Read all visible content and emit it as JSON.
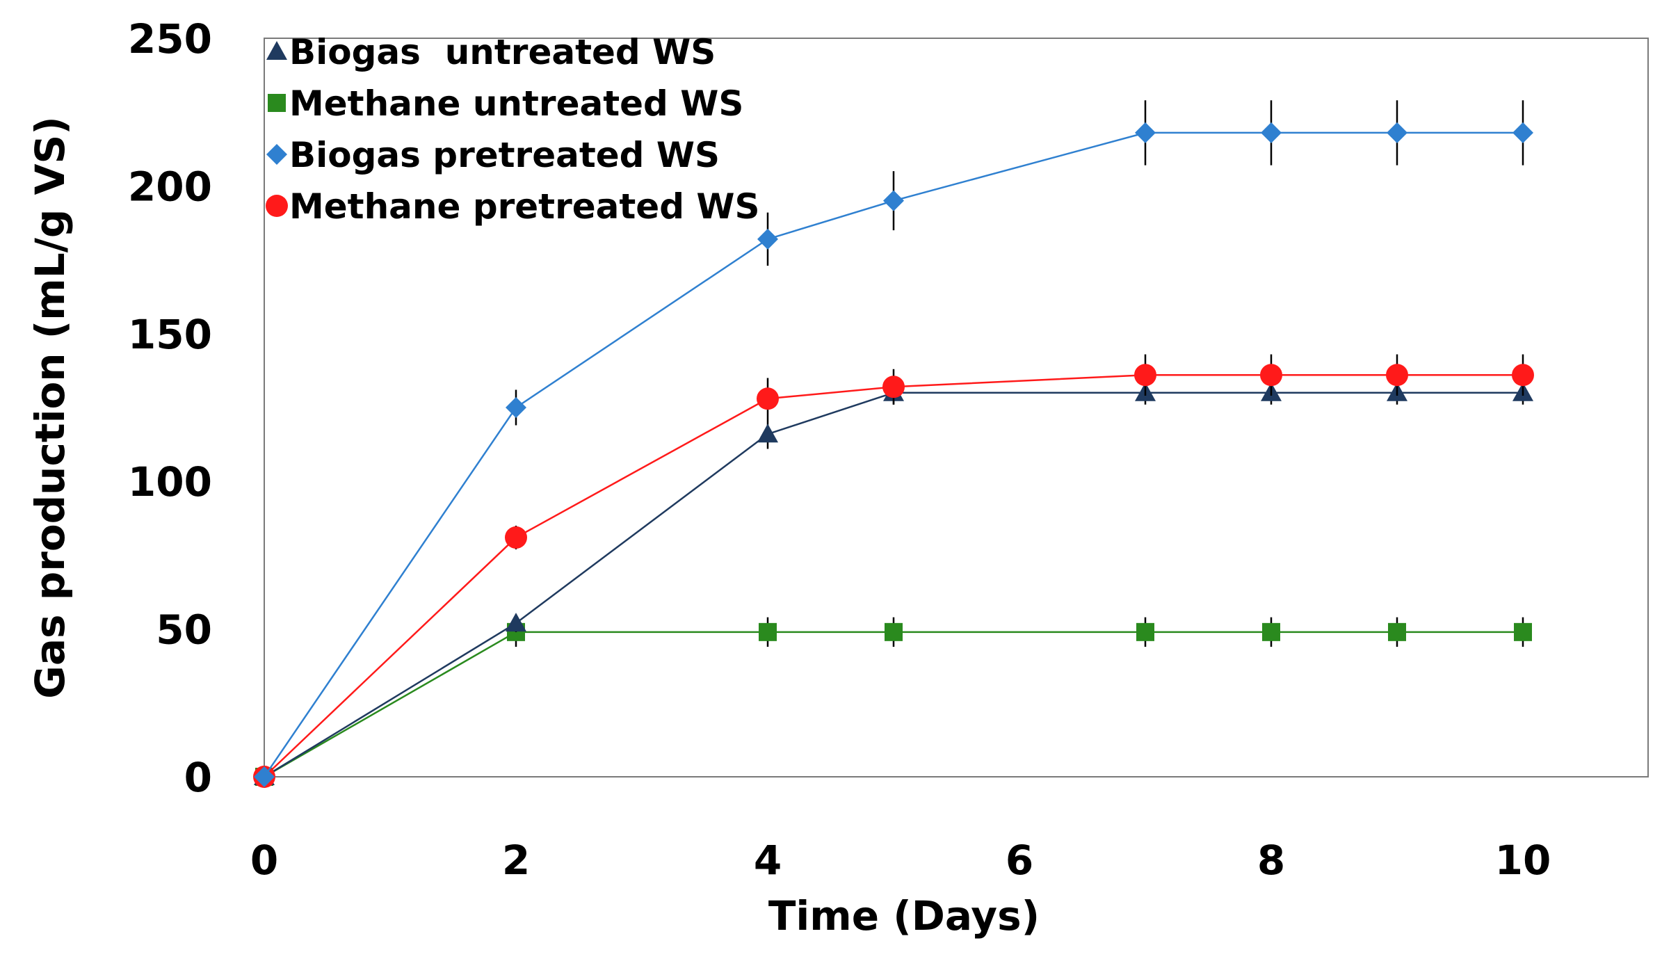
{
  "chart_data": {
    "type": "line",
    "title": "",
    "xlabel": "Time (Days)",
    "ylabel": "Gas production (mL/g VS)",
    "xlim": [
      0,
      11
    ],
    "ylim": [
      0,
      250
    ],
    "xticks": [
      0,
      2,
      4,
      6,
      8,
      10
    ],
    "yticks": [
      0,
      50,
      100,
      150,
      200,
      250
    ],
    "grid": false,
    "legend_position": "top-left",
    "x": [
      0,
      2,
      4,
      5,
      7,
      8,
      9,
      10
    ],
    "series": [
      {
        "name": "Biogas  untreated WS",
        "marker": "triangle",
        "color": "#1f3a5f",
        "values": [
          0,
          52,
          116,
          130,
          130,
          130,
          130,
          130
        ],
        "errors": [
          0,
          3,
          5,
          4,
          4,
          4,
          4,
          4
        ]
      },
      {
        "name": "Methane untreated WS",
        "marker": "square",
        "color": "#2a8a1e",
        "values": [
          0,
          49,
          49,
          49,
          49,
          49,
          49,
          49
        ],
        "errors": [
          0,
          5,
          5,
          5,
          5,
          5,
          5,
          5
        ]
      },
      {
        "name": "Biogas pretreated WS",
        "marker": "diamond",
        "color": "#2f80d0",
        "values": [
          0,
          125,
          182,
          195,
          218,
          218,
          218,
          218
        ],
        "errors": [
          0,
          6,
          9,
          10,
          11,
          11,
          11,
          11
        ]
      },
      {
        "name": "Methane pretreated WS",
        "marker": "circle",
        "color": "#ff1a1a",
        "values": [
          0,
          81,
          128,
          132,
          136,
          136,
          136,
          136
        ],
        "errors": [
          0,
          4,
          7,
          6,
          7,
          7,
          7,
          7
        ]
      }
    ]
  }
}
